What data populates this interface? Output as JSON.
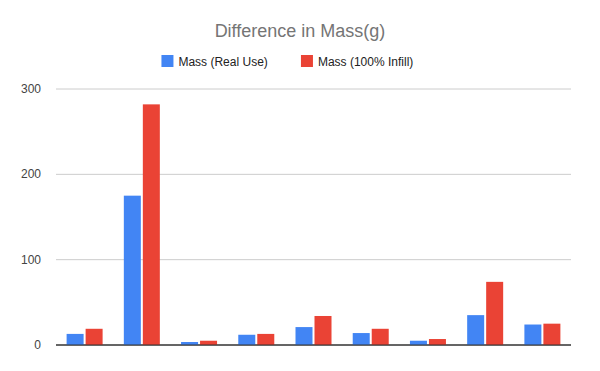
{
  "chart_data": {
    "type": "bar",
    "title": "Difference in Mass(g)",
    "categories": [
      null,
      null,
      null,
      null,
      null,
      null,
      null,
      null,
      null
    ],
    "series": [
      {
        "name": "Mass (Real Use)",
        "color": "#4285f4",
        "values": [
          13,
          175,
          3.5,
          12,
          21,
          14,
          5,
          35,
          24
        ]
      },
      {
        "name": "Mass (100% Infill)",
        "color": "#ea4335",
        "values": [
          19,
          282,
          5,
          13,
          34,
          19,
          7,
          74,
          25
        ]
      }
    ],
    "ylim": [
      0,
      300
    ],
    "yticks": [
      0,
      100,
      200,
      300
    ],
    "grid": true,
    "legend": "top"
  }
}
